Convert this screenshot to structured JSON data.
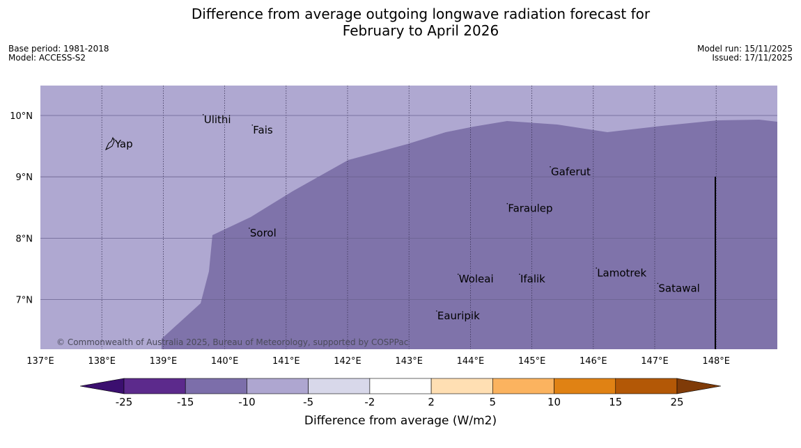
{
  "title_line1": "Difference from average outgoing longwave radiation forecast for",
  "title_line2": "February to April 2026",
  "meta": {
    "base_period": "Base period: 1981-2018",
    "model": "Model: ACCESS-S2",
    "model_run": "Model run: 15/11/2025",
    "issued": "Issued: 17/11/2025"
  },
  "map": {
    "lon_range": [
      137,
      149
    ],
    "lat_range": [
      6.2,
      10.5
    ],
    "x_ticks": [
      "137°E",
      "138°E",
      "139°E",
      "140°E",
      "141°E",
      "142°E",
      "143°E",
      "144°E",
      "145°E",
      "146°E",
      "147°E",
      "148°E"
    ],
    "y_ticks": [
      "10°N",
      "9°N",
      "8°N",
      "7°N"
    ],
    "places": [
      {
        "name": "Yap",
        "lon": 138.2,
        "lat": 9.5
      },
      {
        "name": "Ulithi",
        "lon": 139.65,
        "lat": 9.9
      },
      {
        "name": "Fais",
        "lon": 140.45,
        "lat": 9.73
      },
      {
        "name": "Gaferut",
        "lon": 145.3,
        "lat": 9.05
      },
      {
        "name": "Faraulep",
        "lon": 144.6,
        "lat": 8.45
      },
      {
        "name": "Sorol",
        "lon": 140.4,
        "lat": 8.05
      },
      {
        "name": "Lamotrek",
        "lon": 146.05,
        "lat": 7.4
      },
      {
        "name": "Woleai",
        "lon": 143.8,
        "lat": 7.3
      },
      {
        "name": "Ifalik",
        "lon": 144.8,
        "lat": 7.3
      },
      {
        "name": "Satawal",
        "lon": 147.05,
        "lat": 7.15
      },
      {
        "name": "Eauripik",
        "lon": 143.45,
        "lat": 6.7
      }
    ],
    "copyright": "© Commonwealth of Australia 2025, Bureau of Meteorology, supported by COSPPac"
  },
  "colorbar": {
    "title": "Difference from average (W/m2)",
    "labels": [
      "-25",
      "-15",
      "-10",
      "-5",
      "-2",
      "2",
      "5",
      "10",
      "15",
      "25"
    ],
    "colors": [
      "#3b0f6f",
      "#5c2a8c",
      "#7c6eaa",
      "#aea6d0",
      "#d8d8ea",
      "#ffffff",
      "#ffdfb3",
      "#fbb35f",
      "#e08214",
      "#b35806",
      "#7f3b08"
    ]
  }
}
